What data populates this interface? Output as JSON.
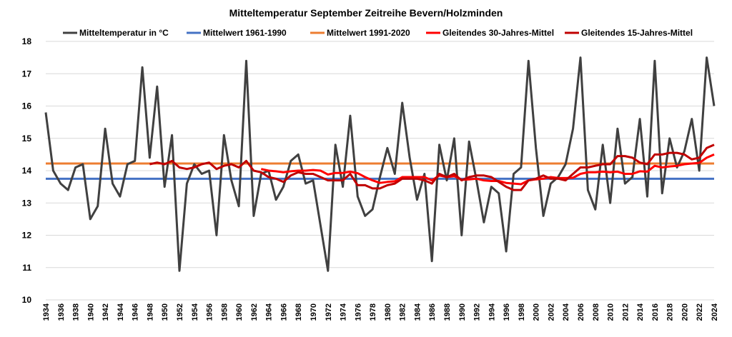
{
  "chart_data": {
    "type": "line",
    "title": "Mitteltemperatur September Zeitreihe Bevern/Holzminden",
    "xlabel": "",
    "ylabel": "",
    "ylim": [
      10,
      18
    ],
    "yticks": [
      10,
      11,
      12,
      13,
      14,
      15,
      16,
      17,
      18
    ],
    "xlim": [
      1934,
      2024
    ],
    "grid": true,
    "legend_position": "top",
    "colors": {
      "temp": "#404040",
      "mean6190": "#4472C4",
      "mean9120": "#ED7D31",
      "ma30": "#FF0000",
      "ma15": "#C00000"
    },
    "series": [
      {
        "name": "Mitteltemperatur in °C",
        "start_year": 1934,
        "values": [
          15.8,
          14.0,
          13.6,
          13.4,
          14.1,
          14.2,
          12.5,
          12.9,
          15.3,
          13.6,
          13.2,
          14.2,
          14.3,
          17.2,
          14.4,
          16.6,
          13.5,
          15.1,
          10.9,
          13.6,
          14.2,
          13.9,
          14.0,
          12.0,
          15.1,
          13.7,
          12.9,
          17.4,
          12.6,
          13.9,
          14.0,
          13.1,
          13.5,
          14.3,
          14.5,
          13.6,
          13.7,
          12.3,
          10.9,
          14.8,
          13.5,
          15.7,
          13.2,
          12.6,
          12.8,
          13.8,
          14.7,
          13.9,
          16.1,
          14.4,
          13.1,
          13.9,
          11.2,
          14.8,
          13.7,
          15.0,
          12.0,
          14.9,
          13.7,
          12.4,
          13.5,
          13.3,
          11.5,
          13.9,
          14.1,
          17.4,
          14.7,
          12.6,
          13.6,
          13.8,
          14.2,
          15.3,
          17.5,
          13.4,
          12.8,
          14.8,
          13.0,
          15.3,
          13.6,
          13.8,
          15.6,
          13.2,
          17.4,
          13.3,
          15.0,
          14.1,
          14.6,
          15.6,
          14.0,
          17.5,
          16.0
        ]
      },
      {
        "name": "Mittelwert 1961-1990",
        "constant": 13.75
      },
      {
        "name": "Mittelwert 1991-2020",
        "constant": 14.22
      },
      {
        "name": "Gleitendes 30-Jahres-Mittel",
        "start_year": 1963,
        "values": [
          14.05,
          14.0,
          13.98,
          13.95,
          13.98,
          14.0,
          14.0,
          14.02,
          14.0,
          13.88,
          13.93,
          13.93,
          13.97,
          13.92,
          13.8,
          13.7,
          13.62,
          13.65,
          13.67,
          13.8,
          13.8,
          13.8,
          13.8,
          13.7,
          13.85,
          13.8,
          13.83,
          13.72,
          13.73,
          13.75,
          13.7,
          13.68,
          13.68,
          13.62,
          13.6,
          13.58,
          13.7,
          13.73,
          13.75,
          13.8,
          13.77,
          13.77,
          13.78,
          13.9,
          13.95,
          13.95,
          13.97,
          13.95,
          13.97,
          13.9,
          13.9,
          13.98,
          13.97,
          14.15,
          14.1,
          14.13,
          14.15,
          14.2,
          14.22,
          14.24,
          14.4,
          14.5
        ]
      },
      {
        "name": "Gleitendes 15-Jahres-Mittel",
        "start_year": 1948,
        "values": [
          14.2,
          14.25,
          14.2,
          14.3,
          14.1,
          14.05,
          14.1,
          14.2,
          14.25,
          14.05,
          14.15,
          14.2,
          14.1,
          14.3,
          14.0,
          13.95,
          13.8,
          13.75,
          13.65,
          13.85,
          13.95,
          13.9,
          13.9,
          13.8,
          13.7,
          13.7,
          13.7,
          13.9,
          13.55,
          13.55,
          13.45,
          13.45,
          13.55,
          13.6,
          13.75,
          13.75,
          13.75,
          13.7,
          13.6,
          13.9,
          13.8,
          13.9,
          13.7,
          13.8,
          13.85,
          13.85,
          13.8,
          13.65,
          13.5,
          13.4,
          13.4,
          13.7,
          13.75,
          13.85,
          13.75,
          13.75,
          13.7,
          13.9,
          14.1,
          14.1,
          14.15,
          14.2,
          14.2,
          14.45,
          14.45,
          14.4,
          14.25,
          14.2,
          14.5,
          14.5,
          14.55,
          14.55,
          14.5,
          14.35,
          14.4,
          14.7,
          14.8
        ]
      }
    ]
  }
}
